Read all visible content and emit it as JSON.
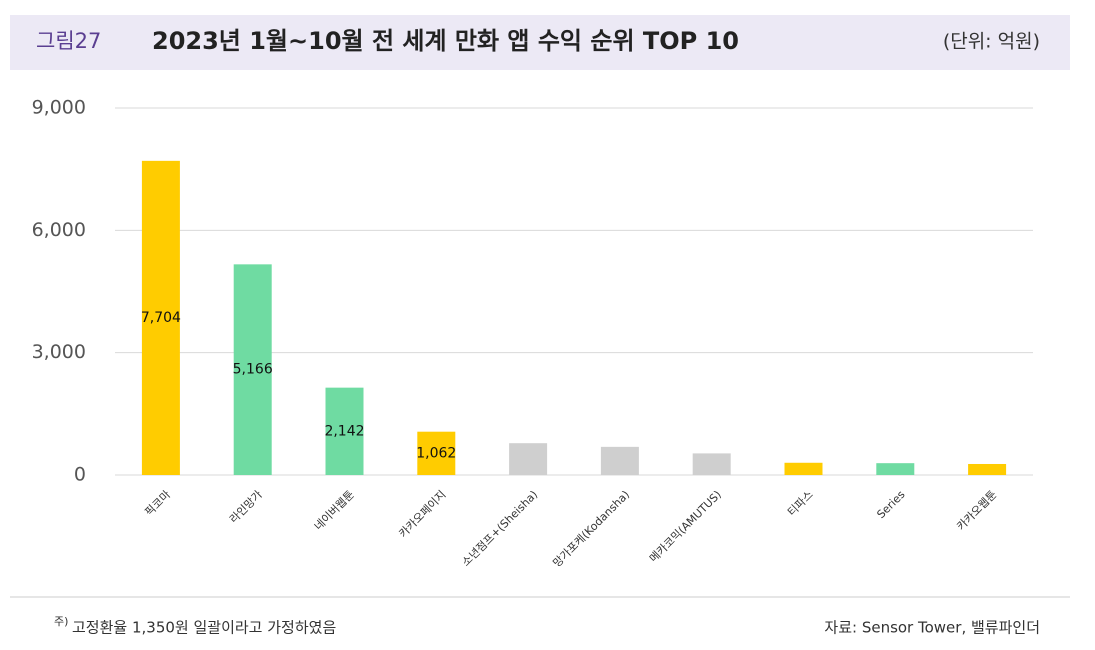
{
  "chart_data": {
    "type": "bar",
    "figure_label": "그림27",
    "title": "2023년 1월~10월 전 세계 만화 앱 수익 순위 TOP 10",
    "unit": "(단위: 억원)",
    "categories": [
      "픽코마",
      "라인망가",
      "네이버웹툰",
      "카카오페이지",
      "소년점프+(Sheisha)",
      "망가포케(Kodansha)",
      "메카코믹(AMUTUS)",
      "티파스",
      "Series",
      "카카오웹툰"
    ],
    "values": [
      7704,
      5166,
      2142,
      1062,
      780,
      690,
      530,
      300,
      290,
      270
    ],
    "value_labels": [
      "7,704",
      "5,166",
      "2,142",
      "1,062",
      null,
      null,
      null,
      null,
      null,
      null
    ],
    "colors": [
      "#ffcc00",
      "#6fdba2",
      "#6fdba2",
      "#ffcc00",
      "#cfcfcf",
      "#cfcfcf",
      "#cfcfcf",
      "#ffcc00",
      "#6fdba2",
      "#ffcc00"
    ],
    "ylim": [
      0,
      9000
    ],
    "yticks": [
      0,
      {
        "value": 3000,
        "label": "3,000"
      },
      {
        "value": 6000,
        "label": "6,000"
      },
      {
        "value": 9000,
        "label": "9,000"
      }
    ],
    "grid": true,
    "note_marker": "주)",
    "note": "고정환율 1,350원 일괄이라고 가정하였음",
    "source": "자료: Sensor Tower, 밸류파인더"
  }
}
